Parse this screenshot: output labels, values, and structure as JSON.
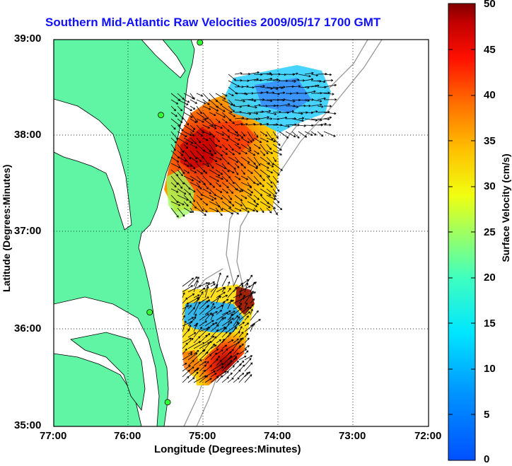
{
  "title": "Southern Mid-Atlantic Raw Velocities 2009/05/17 1700 GMT",
  "axes": {
    "xlabel": "Longitude (Degrees:Minutes)",
    "ylabel": "Latitude (Degrees:Minutes)",
    "x_ticks": [
      "77:00",
      "76:00",
      "75:00",
      "74:00",
      "73:00",
      "72:00"
    ],
    "y_ticks": [
      "39:00",
      "38:00",
      "37:00",
      "36:00",
      "35:00"
    ],
    "grid": "dotted"
  },
  "colorbar": {
    "title": "Surface Velocity (cm/s)",
    "ticks": [
      "50",
      "45",
      "40",
      "35",
      "30",
      "25",
      "20",
      "15",
      "10",
      "5",
      "0"
    ],
    "range": [
      0,
      50
    ],
    "colormap": "jet"
  },
  "colors": {
    "title": "#1010ff",
    "land": "#5ff5a5",
    "coastline": "#000000",
    "bathymetry": "#999999",
    "station": "#33ff33"
  },
  "stations": [
    {
      "lon": -75.05,
      "lat": 38.97
    },
    {
      "lon": -75.57,
      "lat": 38.22
    },
    {
      "lon": -75.72,
      "lat": 36.18
    },
    {
      "lon": -75.48,
      "lat": 35.25
    }
  ],
  "velocity_fields": [
    {
      "region": "north",
      "dominant_speed_range": [
        5,
        50
      ]
    },
    {
      "region": "south",
      "dominant_speed_range": [
        5,
        50
      ]
    }
  ]
}
